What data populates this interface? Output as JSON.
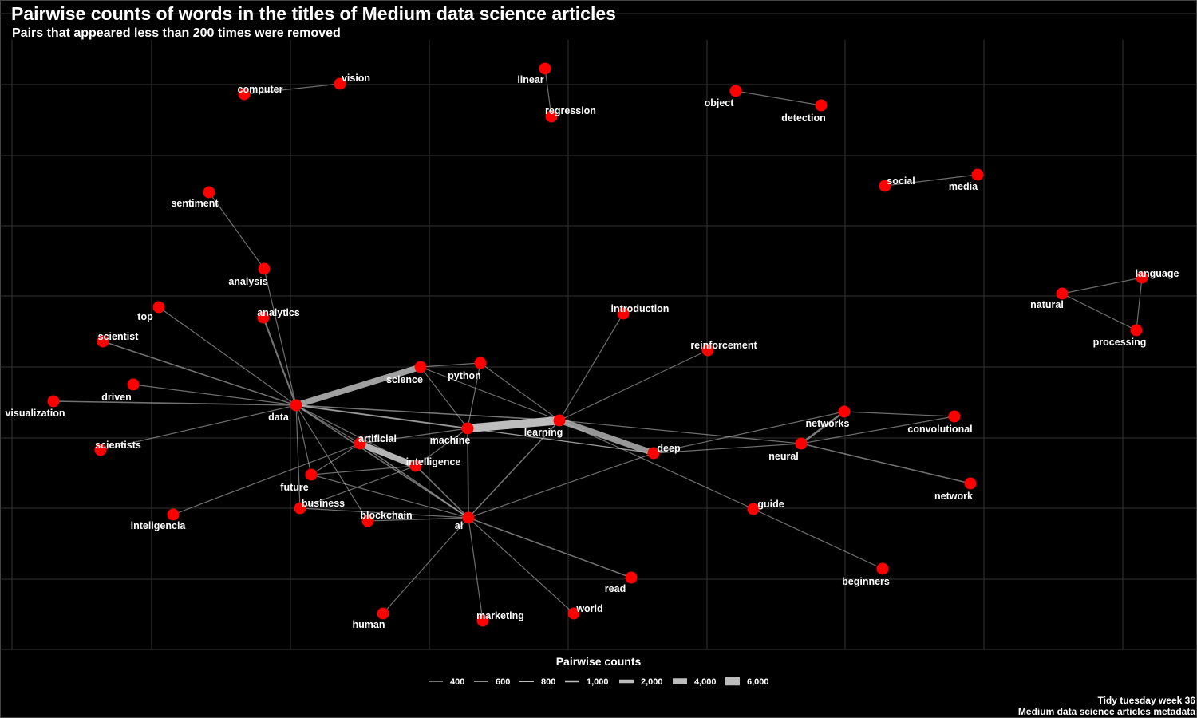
{
  "title": "Pairwise counts of words in the titles of Medium data science articles",
  "subtitle": "Pairs that appeared less than 200 times were removed",
  "caption": [
    "Tidy tuesday week 36",
    "Medium data science articles metadata"
  ],
  "colors": {
    "background": "#000000",
    "node": "#ff0000",
    "edge": "#bdbdbd",
    "grid": "#333333",
    "text": "#ffffff"
  },
  "chart_data": {
    "type": "network",
    "legend": {
      "title": "Pairwise counts",
      "placement": "bottom",
      "keys": [
        {
          "label": "400",
          "value": 400
        },
        {
          "label": "600",
          "value": 600
        },
        {
          "label": "800",
          "value": 800
        },
        {
          "label": "1,000",
          "value": 1000
        },
        {
          "label": "2,000",
          "value": 2000
        },
        {
          "label": "4,000",
          "value": 4000
        },
        {
          "label": "6,000",
          "value": 6000
        }
      ]
    },
    "nodes": [
      {
        "id": "data",
        "label": "data"
      },
      {
        "id": "science",
        "label": "science"
      },
      {
        "id": "python",
        "label": "python"
      },
      {
        "id": "machine",
        "label": "machine"
      },
      {
        "id": "learning",
        "label": "learning"
      },
      {
        "id": "deep",
        "label": "deep"
      },
      {
        "id": "artificial",
        "label": "artificial"
      },
      {
        "id": "intelligence",
        "label": "intelligence"
      },
      {
        "id": "ai",
        "label": "ai"
      },
      {
        "id": "future",
        "label": "future"
      },
      {
        "id": "business",
        "label": "business"
      },
      {
        "id": "blockchain",
        "label": "blockchain"
      },
      {
        "id": "inteligencia",
        "label": "inteligencia"
      },
      {
        "id": "scientists",
        "label": "scientists"
      },
      {
        "id": "visualization",
        "label": "visualization"
      },
      {
        "id": "driven",
        "label": "driven"
      },
      {
        "id": "scientist",
        "label": "scientist"
      },
      {
        "id": "top",
        "label": "top"
      },
      {
        "id": "analytics",
        "label": "analytics"
      },
      {
        "id": "analysis",
        "label": "analysis"
      },
      {
        "id": "sentiment",
        "label": "sentiment"
      },
      {
        "id": "computer",
        "label": "computer"
      },
      {
        "id": "vision",
        "label": "vision"
      },
      {
        "id": "linear",
        "label": "linear"
      },
      {
        "id": "regression",
        "label": "regression"
      },
      {
        "id": "object",
        "label": "object"
      },
      {
        "id": "detection",
        "label": "detection"
      },
      {
        "id": "social",
        "label": "social"
      },
      {
        "id": "media",
        "label": "media"
      },
      {
        "id": "natural",
        "label": "natural"
      },
      {
        "id": "language",
        "label": "language"
      },
      {
        "id": "processing",
        "label": "processing"
      },
      {
        "id": "introduction",
        "label": "introduction"
      },
      {
        "id": "reinforcement",
        "label": "reinforcement"
      },
      {
        "id": "networks",
        "label": "networks"
      },
      {
        "id": "convolutional",
        "label": "convolutional"
      },
      {
        "id": "neural",
        "label": "neural"
      },
      {
        "id": "network",
        "label": "network"
      },
      {
        "id": "guide",
        "label": "guide"
      },
      {
        "id": "beginners",
        "label": "beginners"
      },
      {
        "id": "read",
        "label": "read"
      },
      {
        "id": "world",
        "label": "world"
      },
      {
        "id": "marketing",
        "label": "marketing"
      },
      {
        "id": "human",
        "label": "human"
      }
    ],
    "edges": [
      {
        "source": "machine",
        "target": "learning",
        "count": 6500
      },
      {
        "source": "data",
        "target": "science",
        "count": 3000
      },
      {
        "source": "artificial",
        "target": "intelligence",
        "count": 4000
      },
      {
        "source": "deep",
        "target": "learning",
        "count": 2500
      },
      {
        "source": "neural",
        "target": "networks",
        "count": 900
      },
      {
        "source": "data",
        "target": "analytics",
        "count": 700
      },
      {
        "source": "data",
        "target": "machine",
        "count": 650
      },
      {
        "source": "data",
        "target": "learning",
        "count": 600
      },
      {
        "source": "data",
        "target": "ai",
        "count": 550
      },
      {
        "source": "data",
        "target": "scientist",
        "count": 500
      },
      {
        "source": "ai",
        "target": "learning",
        "count": 550
      },
      {
        "source": "ai",
        "target": "machine",
        "count": 500
      },
      {
        "source": "ai",
        "target": "artificial",
        "count": 500
      },
      {
        "source": "ai",
        "target": "intelligence",
        "count": 500
      },
      {
        "source": "ai",
        "target": "read",
        "count": 500
      },
      {
        "source": "neural",
        "target": "network",
        "count": 500
      },
      {
        "source": "data",
        "target": "visualization",
        "count": 450
      },
      {
        "source": "sentiment",
        "target": "analysis",
        "count": 300
      },
      {
        "source": "data",
        "target": "analysis",
        "count": 300
      },
      {
        "source": "data",
        "target": "top",
        "count": 300
      },
      {
        "source": "data",
        "target": "driven",
        "count": 300
      },
      {
        "source": "data",
        "target": "scientists",
        "count": 300
      },
      {
        "source": "data",
        "target": "future",
        "count": 300
      },
      {
        "source": "data",
        "target": "business",
        "count": 300
      },
      {
        "source": "data",
        "target": "blockchain",
        "count": 300
      },
      {
        "source": "data",
        "target": "artificial",
        "count": 300
      },
      {
        "source": "data",
        "target": "intelligence",
        "count": 300
      },
      {
        "source": "data",
        "target": "deep",
        "count": 300
      },
      {
        "source": "science",
        "target": "machine",
        "count": 300
      },
      {
        "source": "science",
        "target": "learning",
        "count": 300
      },
      {
        "source": "science",
        "target": "python",
        "count": 300
      },
      {
        "source": "python",
        "target": "machine",
        "count": 300
      },
      {
        "source": "python",
        "target": "learning",
        "count": 300
      },
      {
        "source": "machine",
        "target": "artificial",
        "count": 300
      },
      {
        "source": "machine",
        "target": "intelligence",
        "count": 300
      },
      {
        "source": "machine",
        "target": "deep",
        "count": 300
      },
      {
        "source": "learning",
        "target": "introduction",
        "count": 300
      },
      {
        "source": "learning",
        "target": "reinforcement",
        "count": 300
      },
      {
        "source": "learning",
        "target": "neural",
        "count": 300
      },
      {
        "source": "learning",
        "target": "guide",
        "count": 300
      },
      {
        "source": "deep",
        "target": "networks",
        "count": 300
      },
      {
        "source": "deep",
        "target": "neural",
        "count": 300
      },
      {
        "source": "deep",
        "target": "ai",
        "count": 300
      },
      {
        "source": "networks",
        "target": "convolutional",
        "count": 300
      },
      {
        "source": "neural",
        "target": "convolutional",
        "count": 300
      },
      {
        "source": "guide",
        "target": "beginners",
        "count": 300
      },
      {
        "source": "artificial",
        "target": "inteligencia",
        "count": 300
      },
      {
        "source": "artificial",
        "target": "future",
        "count": 300
      },
      {
        "source": "intelligence",
        "target": "future",
        "count": 300
      },
      {
        "source": "intelligence",
        "target": "business",
        "count": 300
      },
      {
        "source": "business",
        "target": "ai",
        "count": 300
      },
      {
        "source": "blockchain",
        "target": "ai",
        "count": 300
      },
      {
        "source": "future",
        "target": "ai",
        "count": 300
      },
      {
        "source": "ai",
        "target": "world",
        "count": 300
      },
      {
        "source": "ai",
        "target": "marketing",
        "count": 300
      },
      {
        "source": "ai",
        "target": "human",
        "count": 300
      },
      {
        "source": "computer",
        "target": "vision",
        "count": 300
      },
      {
        "source": "linear",
        "target": "regression",
        "count": 300
      },
      {
        "source": "object",
        "target": "detection",
        "count": 300
      },
      {
        "source": "social",
        "target": "media",
        "count": 300
      },
      {
        "source": "natural",
        "target": "language",
        "count": 300
      },
      {
        "source": "language",
        "target": "processing",
        "count": 300
      },
      {
        "source": "natural",
        "target": "processing",
        "count": 300
      }
    ]
  }
}
